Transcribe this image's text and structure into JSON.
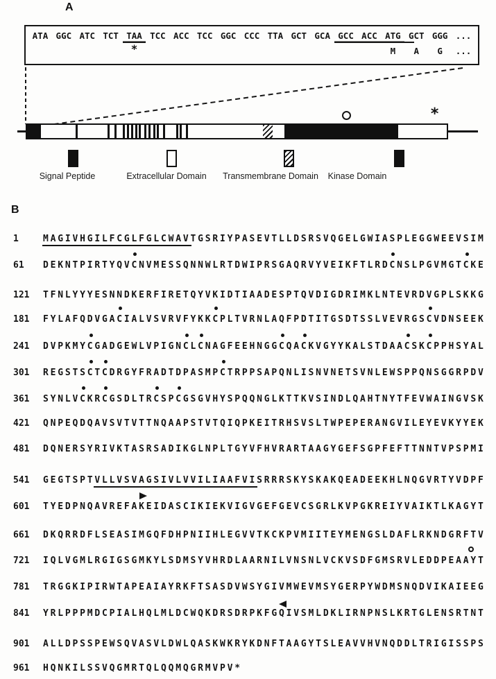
{
  "ink_color": "#161616",
  "paper_color": "#fdfdfc",
  "panel_a": {
    "label": "A",
    "dna_codons": [
      {
        "t": "ATA",
        "u": "none"
      },
      {
        "t": "GGC",
        "u": "none"
      },
      {
        "t": "ATC",
        "u": "none"
      },
      {
        "t": "TCT",
        "u": "none"
      },
      {
        "t": "TAA",
        "u": "full"
      },
      {
        "t": "TCC",
        "u": "none"
      },
      {
        "t": "ACC",
        "u": "none"
      },
      {
        "t": "TCC",
        "u": "none"
      },
      {
        "t": "GGC",
        "u": "none"
      },
      {
        "t": "CCC",
        "u": "none"
      },
      {
        "t": "TTA",
        "u": "none"
      },
      {
        "t": "GCT",
        "u": "none"
      },
      {
        "t": "GCA",
        "u": "none"
      },
      {
        "t": "GCC",
        "u": "full"
      },
      {
        "t": "ACC",
        "u": "full"
      },
      {
        "t": "ATG",
        "u": "full"
      },
      {
        "t": "GCT",
        "u": "first"
      },
      {
        "t": "GGG",
        "u": "none"
      },
      {
        "t": "...",
        "u": "none"
      }
    ],
    "translation_cells": [
      "",
      "",
      "",
      "",
      "*",
      "",
      "",
      "",
      "",
      "",
      "",
      "",
      "",
      "",
      "",
      "M",
      "A",
      "G",
      "..."
    ],
    "diagram": {
      "extracellular_ticks": [
        70,
        116,
        126,
        138,
        144,
        150,
        156,
        161,
        169,
        175,
        182,
        187,
        196,
        215,
        220,
        229
      ],
      "circle_marker": "open-circle",
      "end_marker": "*"
    },
    "legend": [
      {
        "label": "Signal Peptide",
        "swatch": "black"
      },
      {
        "label": "Extracellular Domain",
        "swatch": "white"
      },
      {
        "label": "Transmembrane Domain",
        "swatch": "hatched"
      },
      {
        "label": "Kinase Domain",
        "swatch": "black"
      }
    ]
  },
  "panel_b": {
    "label": "B",
    "lines": [
      {
        "num": "1",
        "seq": "MAGIVHGILFCGLFGLCWAVTGSRIYPASEVTLLDSRSVQGELGWIASPLEGGWEEVSIM",
        "underline": [
          0,
          19
        ]
      },
      {
        "num": "61",
        "seq": "DEKNTPIRTYQVCNVMESSQNNWLRTDWIPRSGAQRVYVEIKFTLRDCNSLPGVMGTCKE",
        "dots": [
          12,
          47,
          57
        ]
      },
      {
        "num": "121",
        "seq": "TFNLYYYESNNDKERFIRETQYVKIDTIAADESPTQVDIGDRIMKLNTEVRDVGPLSKKG"
      },
      {
        "num": "181",
        "seq": "FYLAFQDVGACIALVSVRVFYKKCPLTVRNLAQFPDTITGSDTSSLVEVRGSCVDNSEEK",
        "dots": [
          10,
          23,
          52
        ]
      },
      {
        "num": "241",
        "seq": "DVPKMYCGADGEWLVPIGNCLCNAGFEEHNGGCQACKVGYYKALSTDAACSKCPPHSYAL",
        "dots": [
          6,
          19,
          21,
          32,
          35,
          49,
          52
        ]
      },
      {
        "num": "301",
        "seq": "REGSTSCTCDRGYFRADTDPASMPCTRPPSAPQNLISNVNETSVNLEWSPPQNSGGRPDV",
        "dots": [
          6,
          8,
          24
        ]
      },
      {
        "num": "361",
        "seq": "SYNLVCKRCGSDLTRCSPCGSGVHYSPQQNGLKTTKVSINDLQAHTNYTFEVWAINGVSK",
        "dots": [
          5,
          8,
          15,
          18
        ]
      },
      {
        "num": "421",
        "seq": "QNPEQDQAVSVTVTTNQAAPSTVTQIQPKEITRHSVSLTWPEPERANGVILEYEVKYYEK"
      },
      {
        "num": "481",
        "seq": "DQNERSYRIVKTASRSADIKGLNPLTGYVFHVRARTAAGYGEFSGPFEFTTNNTVPSPMI"
      },
      {
        "num": "541",
        "seq": "GEGTSPTVLLVSVAGSIVLVVILIAAFVISRRRSKYSKAKQEADEEKHLNQGVRTYVDPF",
        "underline": [
          7,
          28
        ]
      },
      {
        "num": "601",
        "seq": "TYEDPNQAVREFAKEIDASCIKIEKVIGVGEFGEVCSGRLKVPGKREIYVAIKTLKAGYT",
        "arrow": {
          "dir": "right",
          "pos": 13.5
        }
      },
      {
        "num": "661",
        "seq": "DKQRRDFLSEASIMGQFDHPNIIHLEGVVTKCKPVMIITEYMENGSLDAFLRKNDGRFTV"
      },
      {
        "num": "721",
        "seq": "IQLVGMLRGIGSGMKYLSDMSYVHRDLAARNILVNSNLVCKVSDFGMSRVLEDDPEAAYT",
        "circle": 57.5
      },
      {
        "num": "781",
        "seq": "TRGGKIPIRWTAPEAIAYRKFTSASDVWSYGIVMWEVMSYGERPYWDMSNQDVIKAIEEG"
      },
      {
        "num": "841",
        "seq": "YRLPPPMDCPIALHQLMLDCWQKDRSDRPKFGQIVSMLDKLIRNPNSLKRTGLENSRTNT",
        "arrow": {
          "dir": "left",
          "pos": 32.5
        }
      },
      {
        "num": "901",
        "seq": "ALLDPSSPEWSQVASVLDWLQASKWKRYKDNFTAAGYTSLEAVVHVNQDDLTRIGISSPS"
      },
      {
        "num": "961",
        "seq": "HQNKILSSVQGMRTQLQQMQGRMVPV*"
      }
    ]
  }
}
